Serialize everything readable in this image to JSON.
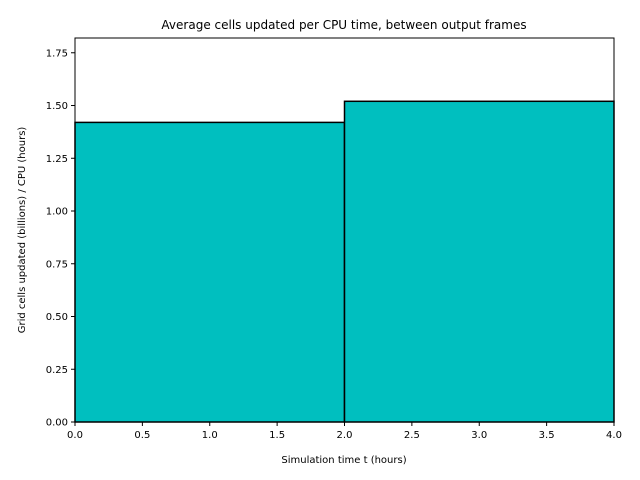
{
  "chart_data": {
    "type": "bar",
    "title": "Average cells updated per CPU time, between output frames",
    "xlabel": "Simulation time t (hours)",
    "ylabel": "Grid cells updated (billions) / CPU (hours)",
    "bins": [
      {
        "x_start": 0.0,
        "x_end": 2.0,
        "value": 1.42
      },
      {
        "x_start": 2.0,
        "x_end": 4.0,
        "value": 1.52
      }
    ],
    "xlim": [
      0.0,
      4.0
    ],
    "ylim": [
      0.0,
      1.82
    ],
    "xticks": [
      0.0,
      0.5,
      1.0,
      1.5,
      2.0,
      2.5,
      3.0,
      3.5,
      4.0
    ],
    "xtick_labels": [
      "0.0",
      "0.5",
      "1.0",
      "1.5",
      "2.0",
      "2.5",
      "3.0",
      "3.5",
      "4.0"
    ],
    "yticks": [
      0.0,
      0.25,
      0.5,
      0.75,
      1.0,
      1.25,
      1.5,
      1.75
    ],
    "ytick_labels": [
      "0.00",
      "0.25",
      "0.50",
      "0.75",
      "1.00",
      "1.25",
      "1.50",
      "1.75"
    ],
    "grid": false,
    "colors": {
      "bar_fill": "#00bfbf",
      "bar_edge": "#000000"
    }
  }
}
